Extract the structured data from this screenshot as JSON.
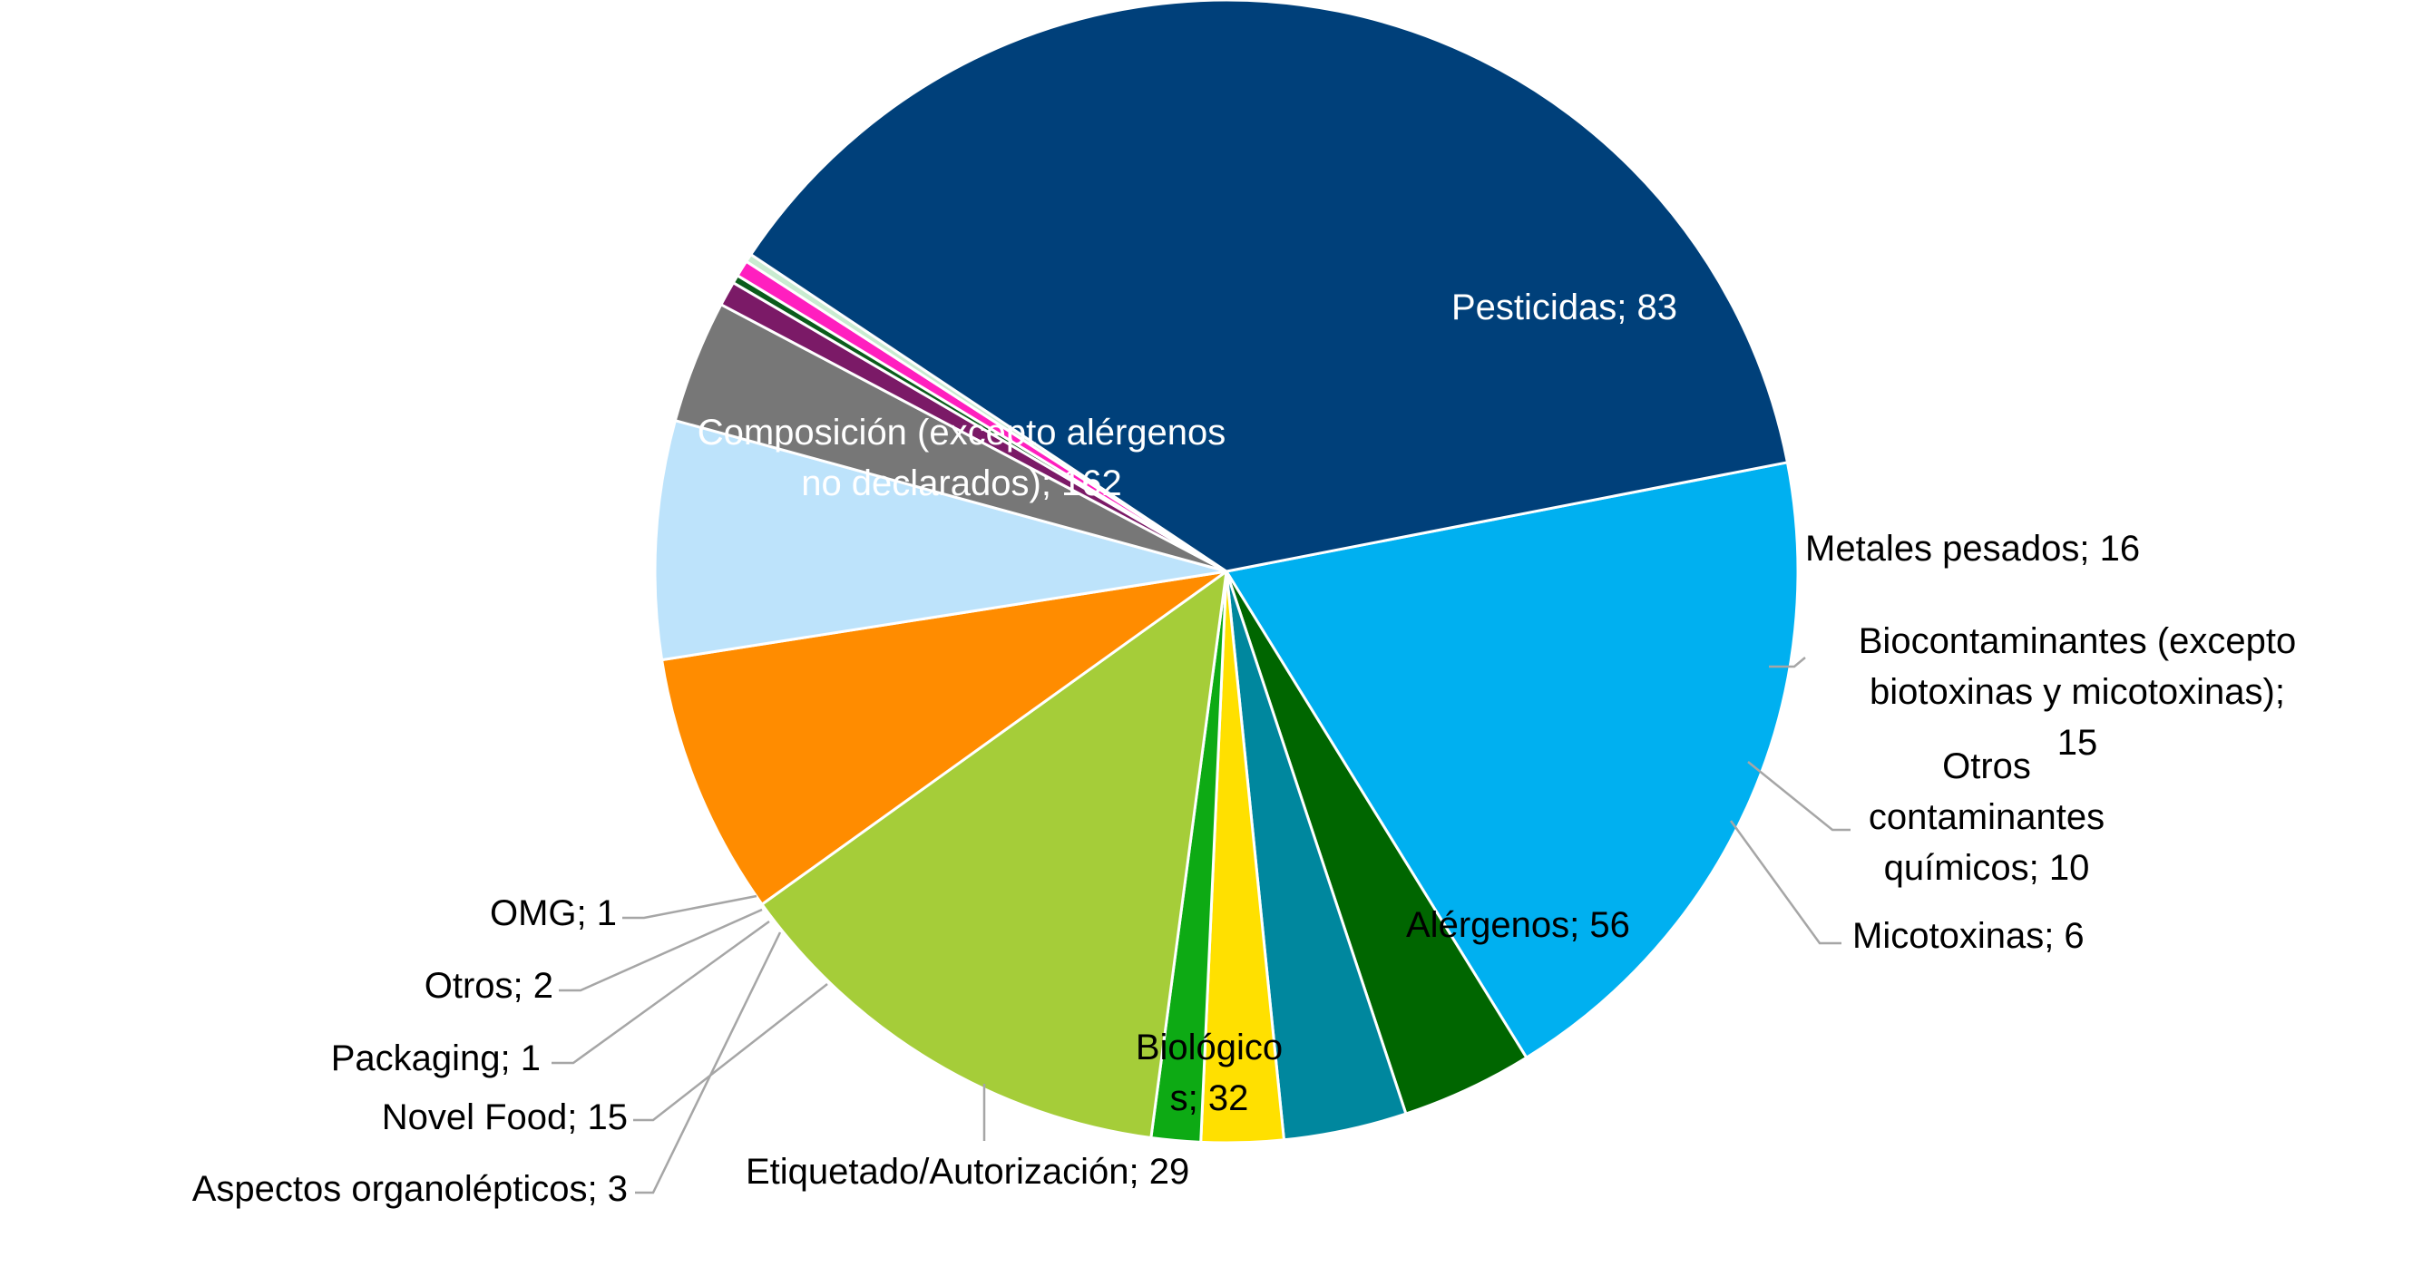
{
  "chart_data": {
    "type": "pie",
    "title": "",
    "legend": "none",
    "slices": [
      {
        "label": "Pesticidas",
        "value": 83,
        "color": "#00B0F0",
        "text": "Pesticidas; 83",
        "text_color": "#ffffff"
      },
      {
        "label": "Metales pesados",
        "value": 16,
        "color": "#006600",
        "text": "Metales pesados; 16",
        "text_color": "#000000"
      },
      {
        "label": "Biocontaminantes (excepto biotoxinas y micotoxinas)",
        "value": 15,
        "color": "#00879E",
        "text_lines": [
          "Biocontaminantes (excepto",
          "biotoxinas y micotoxinas);",
          "15"
        ],
        "text_color": "#000000"
      },
      {
        "label": "Otros contaminantes químicos",
        "value": 10,
        "color": "#FFE000",
        "text_lines": [
          "Otros",
          "contaminantes",
          "químicos; 10"
        ],
        "text_color": "#000000"
      },
      {
        "label": "Micotoxinas",
        "value": 6,
        "color": "#0DAA14",
        "text": "Micotoxinas; 6",
        "text_color": "#000000"
      },
      {
        "label": "Alérgenos",
        "value": 56,
        "color": "#A5CD39",
        "text": "Alérgenos; 56",
        "text_color": "#000000"
      },
      {
        "label": "Biológicos",
        "value": 32,
        "color": "#FF8C00",
        "text_lines": [
          "Biológico",
          "s; 32"
        ],
        "text_color": "#000000"
      },
      {
        "label": "Etiquetado/Autorización",
        "value": 29,
        "color": "#BDE3FB",
        "text": "Etiquetado/Autorización; 29",
        "text_color": "#000000"
      },
      {
        "label": "Novel Food",
        "value": 15,
        "color": "#777777",
        "text": "Novel Food; 15",
        "text_color": "#000000"
      },
      {
        "label": "Aspectos organolépticos",
        "value": 3,
        "color": "#7B1A67",
        "text": "Aspectos organolépticos; 3",
        "text_color": "#000000"
      },
      {
        "label": "Packaging",
        "value": 1,
        "color": "#0B5C1B",
        "text": "Packaging; 1",
        "text_color": "#000000"
      },
      {
        "label": "Otros",
        "value": 2,
        "color": "#FF1FBF",
        "text": "Otros; 2",
        "text_color": "#000000"
      },
      {
        "label": "OMG",
        "value": 1,
        "color": "#C9EBD0",
        "text": "OMG; 1",
        "text_color": "#000000"
      },
      {
        "label": "Composición (excepto alérgenos no declarados)",
        "value": 162,
        "color": "#00407A",
        "text_lines": [
          "Composición (excepto alérgenos",
          "no declarados); 162"
        ],
        "text_color": "#ffffff"
      }
    ]
  }
}
